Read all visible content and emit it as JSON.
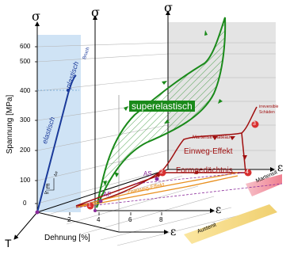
{
  "axes": {
    "sigma_symbol": "σ",
    "epsilon_symbol": "ε",
    "temperature_symbol": "T",
    "y_label": "Spannung [MPa]",
    "x_label": "Dehnung [%]",
    "y_ticks": [
      "0",
      "100",
      "200",
      "300",
      "400",
      "500",
      "600"
    ],
    "x_ticks": [
      "2",
      "4",
      "6",
      "8"
    ]
  },
  "labels": {
    "elastisch": "elastisch",
    "plastisch": "plastisch",
    "bruch": "Bruch",
    "e_modul_e": "E",
    "e_modul_delta_e": "Δε",
    "e_modul_delta_sigma": "Δσ",
    "superelastisch": "superelastisch",
    "einweg_effekt": "Einweg-Effekt",
    "formgedaechtnis": "Formgedächtnis",
    "martensit_plateau": "Martensit-Plateau",
    "irreversible": "irreversible",
    "schaeden": "Schäden",
    "zweiweg_effekt": "Zweiweg-Effekt",
    "martensit": "Martensit",
    "austenit": "Austenit",
    "a_s": "AS",
    "a_f": "AF",
    "point_1": "1",
    "point_2": "2",
    "point_3": "3",
    "point_4": "4"
  },
  "colors": {
    "green": "#1a8a1a",
    "dark_red": "#a01010",
    "blue": "#1a3a9a",
    "orange": "#e89020",
    "point_red": "#d83030",
    "purple": "#8a2a9a",
    "light_blue_panel": "#cfe3f5",
    "grey_panel": "#e4e4e4"
  }
}
